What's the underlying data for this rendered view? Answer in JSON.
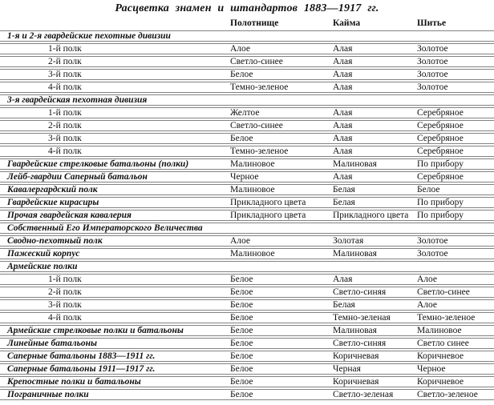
{
  "title": "Расцветка знамен и штандартов 1883—1917 гг.",
  "table": {
    "columns": [
      "",
      "Полотнище",
      "Кайма",
      "Шитье"
    ],
    "rows": [
      {
        "type": "section",
        "label": "1-я и 2-я гвардейские пехотные дивизии"
      },
      {
        "type": "sub",
        "label": "1-й полк",
        "cells": [
          "Алое",
          "Алая",
          "Золотое"
        ]
      },
      {
        "type": "sub",
        "label": "2-й полк",
        "cells": [
          "Светло-синее",
          "Алая",
          "Золотое"
        ]
      },
      {
        "type": "sub",
        "label": "3-й полк",
        "cells": [
          "Белое",
          "Алая",
          "Золотое"
        ]
      },
      {
        "type": "sub",
        "label": "4-й полк",
        "cells": [
          "Темно-зеленое",
          "Алая",
          "Золотое"
        ]
      },
      {
        "type": "section",
        "label": "3-я гвардейская пехотная дивизия"
      },
      {
        "type": "sub",
        "label": "1-й полк",
        "cells": [
          "Желтое",
          "Алая",
          "Серебряное"
        ]
      },
      {
        "type": "sub",
        "label": "2-й полк",
        "cells": [
          "Светло-синее",
          "Алая",
          "Серебряное"
        ]
      },
      {
        "type": "sub",
        "label": "3-й полк",
        "cells": [
          "Белое",
          "Алая",
          "Серебряное"
        ]
      },
      {
        "type": "sub",
        "label": "4-й полк",
        "cells": [
          "Темно-зеленое",
          "Алая",
          "Серебряное"
        ]
      },
      {
        "type": "bold",
        "label": "Гвардейские стрелковые батальоны (полки)",
        "cells": [
          "Малиновое",
          "Малиновая",
          "По прибору"
        ]
      },
      {
        "type": "bold",
        "label": "Лейб-гвардии Саперный батальон",
        "cells": [
          "Черное",
          "Алая",
          "Серебряное"
        ]
      },
      {
        "type": "bold",
        "label": "Кавалергардский полк",
        "cells": [
          "Малиновое",
          "Белая",
          "Белое"
        ]
      },
      {
        "type": "bold",
        "label": "Гвардейские кирасиры",
        "cells": [
          "Прикладного цвета",
          "Белая",
          "По прибору"
        ]
      },
      {
        "type": "bold",
        "label": "Прочая гвардейская кавалерия",
        "cells": [
          "Прикладного цвета",
          "Прикладного цвета",
          "По прибору"
        ]
      },
      {
        "type": "section",
        "label": "Собственный Его Императорского Величества"
      },
      {
        "type": "bold",
        "label": "Сводно-пехотный полк",
        "cells": [
          "Алое",
          "Золотая",
          "Золотое"
        ]
      },
      {
        "type": "bold",
        "label": "Пажеский корпус",
        "cells": [
          "Малиновое",
          "Малиновая",
          "Золотое"
        ]
      },
      {
        "type": "section",
        "label": "Армейские полки"
      },
      {
        "type": "sub",
        "label": "1-й полк",
        "cells": [
          "Белое",
          "Алая",
          "Алое"
        ]
      },
      {
        "type": "sub",
        "label": "2-й полк",
        "cells": [
          "Белое",
          "Светло-синяя",
          "Светло-синее"
        ]
      },
      {
        "type": "sub",
        "label": "3-й полк",
        "cells": [
          "Белое",
          "Белая",
          "Алое"
        ]
      },
      {
        "type": "sub",
        "label": "4-й полк",
        "cells": [
          "Белое",
          "Темно-зеленая",
          "Темно-зеленое"
        ]
      },
      {
        "type": "bold",
        "label": "Армейские стрелковые полки и батальоны",
        "cells": [
          "Белое",
          "Малиновая",
          "Малиновое"
        ]
      },
      {
        "type": "bold",
        "label": "Линейные батальоны",
        "cells": [
          "Белое",
          "Светло-синяя",
          "Светло синее"
        ]
      },
      {
        "type": "bold",
        "label": "Саперные батальоны 1883—1911 гг.",
        "cells": [
          "Белое",
          "Коричневая",
          "Коричневое"
        ]
      },
      {
        "type": "bold",
        "label": "Саперные батальоны 1911—1917 гг.",
        "cells": [
          "Белое",
          "Черная",
          "Черное"
        ]
      },
      {
        "type": "bold",
        "label": "Крепостные полки и батальоны",
        "cells": [
          "Белое",
          "Коричневая",
          "Коричневое"
        ]
      },
      {
        "type": "bold",
        "label": "Пограничные полки",
        "cells": [
          "Белое",
          "Светло-зеленая",
          "Светло-зеленое"
        ]
      }
    ]
  }
}
